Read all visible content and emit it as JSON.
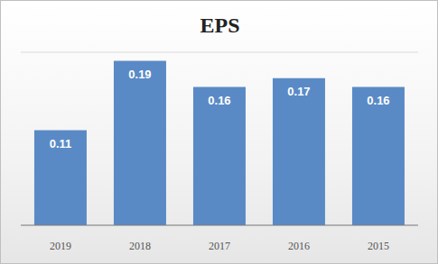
{
  "chart_data": {
    "type": "bar",
    "title": "EPS",
    "categories": [
      "2019",
      "2018",
      "2017",
      "2016",
      "2015"
    ],
    "values": [
      0.11,
      0.19,
      0.16,
      0.17,
      0.16
    ],
    "color": "#5a8ac6",
    "ylim": [
      0,
      0.2
    ],
    "yticks": [
      0,
      0.02,
      0.04,
      0.06,
      0.08,
      0.1,
      0.12,
      0.14,
      0.16,
      0.18,
      0.2
    ],
    "grid": true,
    "data_labels": true,
    "tick_labels": "x"
  }
}
